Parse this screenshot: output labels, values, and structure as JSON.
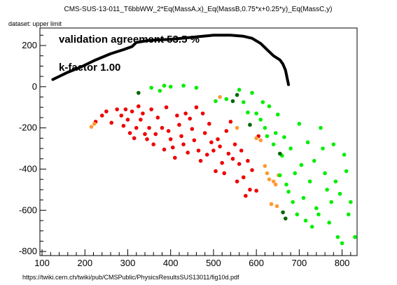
{
  "chart_data": {
    "type": "scatter",
    "title": "CMS-SUS-13-011_T6bbWW_2*Eq(MassA,x)_Eq(MassB,0.75*x+0.25*y)_Eq(MassC,y)",
    "dataset_label": "dataset: upper limit",
    "source_label": "https://twiki.cern.ch/twiki/pub/CMSPublic/PhysicsResultsSUS13011/fig10d.pdf",
    "annotations": [
      "validation agreement 53.5 %",
      "k-factor 1.00"
    ],
    "xlim": [
      95,
      835
    ],
    "ylim": [
      -820,
      285
    ],
    "xticks": [
      100,
      200,
      300,
      400,
      500,
      600,
      700,
      800
    ],
    "yticks": [
      -800,
      -600,
      -400,
      -200,
      0,
      200
    ],
    "grid": false,
    "colors": {
      "red": "#ee0000",
      "orange": "#ff9933",
      "green": "#00ee00",
      "darkgreen": "#006600",
      "curve": "#000000"
    },
    "curve": {
      "x": [
        125,
        140,
        160,
        190,
        225,
        260,
        290,
        310,
        320,
        350,
        400,
        450,
        500,
        540,
        570,
        590,
        610,
        625,
        640,
        655,
        662,
        668,
        672,
        675
      ],
      "y": [
        35,
        50,
        70,
        95,
        130,
        160,
        180,
        195,
        215,
        225,
        230,
        240,
        250,
        250,
        245,
        235,
        210,
        180,
        150,
        130,
        110,
        80,
        40,
        10
      ]
    },
    "series": [
      {
        "color": "red",
        "points": [
          [
            225,
            -170
          ],
          [
            240,
            -140
          ],
          [
            250,
            -120
          ],
          [
            262,
            -175
          ],
          [
            275,
            -110
          ],
          [
            285,
            -140
          ],
          [
            290,
            -190
          ],
          [
            295,
            -110
          ],
          [
            300,
            -160
          ],
          [
            305,
            -225
          ],
          [
            310,
            -120
          ],
          [
            315,
            -250
          ],
          [
            320,
            -200
          ],
          [
            325,
            -95
          ],
          [
            330,
            -160
          ],
          [
            335,
            -130
          ],
          [
            340,
            -230
          ],
          [
            345,
            -255
          ],
          [
            350,
            -200
          ],
          [
            355,
            -110
          ],
          [
            360,
            -280
          ],
          [
            365,
            -230
          ],
          [
            370,
            -150
          ],
          [
            380,
            -200
          ],
          [
            385,
            -305
          ],
          [
            390,
            -100
          ],
          [
            395,
            -215
          ],
          [
            400,
            -255
          ],
          [
            405,
            -295
          ],
          [
            410,
            -345
          ],
          [
            415,
            -140
          ],
          [
            420,
            -185
          ],
          [
            425,
            -240
          ],
          [
            430,
            -280
          ],
          [
            435,
            -130
          ],
          [
            440,
            -320
          ],
          [
            445,
            -155
          ],
          [
            450,
            -205
          ],
          [
            455,
            -260
          ],
          [
            460,
            -100
          ],
          [
            465,
            -310
          ],
          [
            470,
            -360
          ],
          [
            475,
            -130
          ],
          [
            480,
            -225
          ],
          [
            485,
            -330
          ],
          [
            490,
            -180
          ],
          [
            495,
            -270
          ],
          [
            500,
            -310
          ],
          [
            505,
            -410
          ],
          [
            510,
            -255
          ],
          [
            515,
            -290
          ],
          [
            520,
            -370
          ],
          [
            525,
            -420
          ],
          [
            530,
            -215
          ],
          [
            535,
            -325
          ],
          [
            540,
            -170
          ],
          [
            545,
            -350
          ],
          [
            550,
            -280
          ],
          [
            555,
            -460
          ],
          [
            560,
            -375
          ],
          [
            565,
            -310
          ],
          [
            570,
            -440
          ],
          [
            575,
            -530
          ],
          [
            580,
            -360
          ],
          [
            585,
            -500
          ],
          [
            590,
            -405
          ],
          [
            600,
            -505
          ],
          [
            605,
            -240
          ]
        ]
      },
      {
        "color": "orange",
        "points": [
          [
            222,
            -180
          ],
          [
            215,
            -195
          ],
          [
            515,
            -50
          ],
          [
            555,
            -200
          ],
          [
            600,
            -250
          ],
          [
            610,
            -260
          ],
          [
            620,
            -385
          ],
          [
            625,
            -420
          ],
          [
            630,
            -450
          ],
          [
            635,
            -570
          ],
          [
            640,
            -460
          ],
          [
            645,
            -475
          ],
          [
            648,
            -580
          ],
          [
            652,
            -430
          ]
        ]
      },
      {
        "color": "green",
        "points": [
          [
            355,
            -5
          ],
          [
            375,
            -20
          ],
          [
            385,
            5
          ],
          [
            400,
            0
          ],
          [
            430,
            5
          ],
          [
            460,
            -5
          ],
          [
            505,
            -70
          ],
          [
            530,
            -60
          ],
          [
            560,
            -15
          ],
          [
            570,
            -75
          ],
          [
            580,
            -125
          ],
          [
            590,
            -30
          ],
          [
            600,
            -130
          ],
          [
            610,
            -160
          ],
          [
            615,
            -75
          ],
          [
            620,
            -200
          ],
          [
            625,
            -240
          ],
          [
            630,
            -95
          ],
          [
            640,
            -280
          ],
          [
            645,
            -225
          ],
          [
            650,
            -135
          ],
          [
            655,
            -430
          ],
          [
            660,
            -335
          ],
          [
            665,
            -245
          ],
          [
            670,
            -475
          ],
          [
            675,
            -510
          ],
          [
            680,
            -300
          ],
          [
            685,
            -560
          ],
          [
            690,
            -420
          ],
          [
            695,
            -620
          ],
          [
            700,
            -180
          ],
          [
            705,
            -380
          ],
          [
            710,
            -540
          ],
          [
            715,
            -650
          ],
          [
            720,
            -270
          ],
          [
            725,
            -460
          ],
          [
            730,
            -680
          ],
          [
            735,
            -360
          ],
          [
            740,
            -590
          ],
          [
            745,
            -620
          ],
          [
            750,
            -200
          ],
          [
            755,
            -300
          ],
          [
            760,
            -420
          ],
          [
            765,
            -500
          ],
          [
            770,
            -660
          ],
          [
            775,
            -560
          ],
          [
            780,
            -280
          ],
          [
            785,
            -460
          ],
          [
            790,
            -730
          ],
          [
            795,
            -520
          ],
          [
            800,
            -760
          ],
          [
            805,
            -330
          ],
          [
            810,
            -410
          ],
          [
            815,
            -620
          ],
          [
            820,
            -560
          ],
          [
            830,
            -730
          ]
        ]
      },
      {
        "color": "darkgreen",
        "points": [
          [
            325,
            -30
          ],
          [
            545,
            -70
          ],
          [
            555,
            -40
          ],
          [
            585,
            -185
          ],
          [
            655,
            -325
          ],
          [
            662,
            -610
          ],
          [
            668,
            -640
          ]
        ]
      }
    ]
  }
}
